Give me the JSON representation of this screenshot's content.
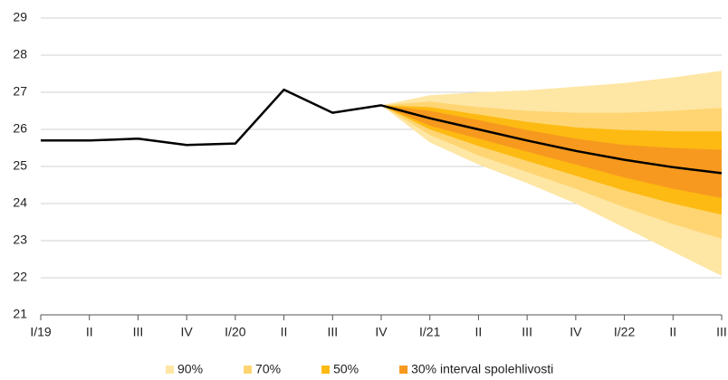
{
  "chart_data": {
    "type": "fan",
    "categories": [
      "I/19",
      "II",
      "III",
      "IV",
      "I/20",
      "II",
      "III",
      "IV",
      "I/21",
      "II",
      "III",
      "IV",
      "I/22",
      "II",
      "III"
    ],
    "line": {
      "color": "#000000",
      "values": [
        25.7,
        25.7,
        25.75,
        25.58,
        25.62,
        27.07,
        26.45,
        26.65,
        26.3,
        26.0,
        25.7,
        25.42,
        25.18,
        24.98,
        24.82
      ]
    },
    "bands": [
      {
        "name": "90%",
        "color": "#fee6a4",
        "upper": [
          null,
          null,
          null,
          null,
          null,
          null,
          null,
          26.65,
          26.92,
          27.0,
          27.05,
          27.15,
          27.25,
          27.4,
          27.58
        ],
        "lower": [
          null,
          null,
          null,
          null,
          null,
          null,
          null,
          26.65,
          25.65,
          25.05,
          24.55,
          24.0,
          23.35,
          22.7,
          22.05
        ]
      },
      {
        "name": "70%",
        "color": "#fed572",
        "upper": [
          null,
          null,
          null,
          null,
          null,
          null,
          null,
          26.65,
          26.75,
          26.6,
          26.5,
          26.45,
          26.45,
          26.5,
          26.58
        ],
        "lower": [
          null,
          null,
          null,
          null,
          null,
          null,
          null,
          26.65,
          25.85,
          25.3,
          24.85,
          24.4,
          23.9,
          23.45,
          23.05
        ]
      },
      {
        "name": "50%",
        "color": "#fdba12",
        "upper": [
          null,
          null,
          null,
          null,
          null,
          null,
          null,
          26.65,
          26.6,
          26.4,
          26.2,
          26.05,
          25.98,
          25.95,
          25.95
        ],
        "lower": [
          null,
          null,
          null,
          null,
          null,
          null,
          null,
          26.65,
          26.0,
          25.55,
          25.15,
          24.75,
          24.35,
          24.0,
          23.7
        ]
      },
      {
        "name": "30% interval spolehlivosti",
        "color": "#f7991f",
        "upper": [
          null,
          null,
          null,
          null,
          null,
          null,
          null,
          26.65,
          26.5,
          26.25,
          25.98,
          25.75,
          25.58,
          25.5,
          25.45
        ],
        "lower": [
          null,
          null,
          null,
          null,
          null,
          null,
          null,
          26.65,
          26.1,
          25.75,
          25.4,
          25.05,
          24.7,
          24.4,
          24.15
        ]
      }
    ],
    "ylim": [
      21,
      29
    ],
    "yticks": [
      21,
      22,
      23,
      24,
      25,
      26,
      27,
      28,
      29
    ],
    "grid": true
  }
}
